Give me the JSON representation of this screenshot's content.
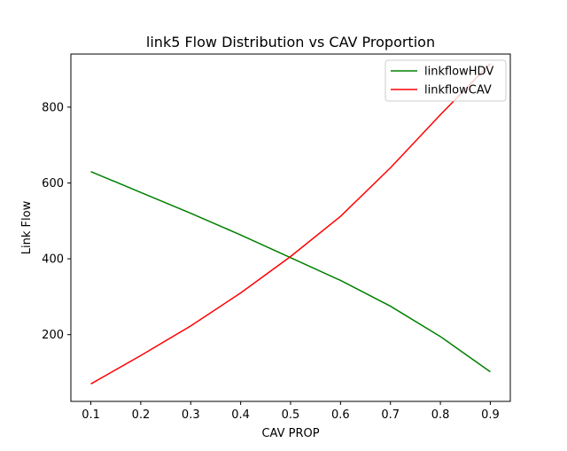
{
  "chart_data": {
    "type": "line",
    "title": "link5 Flow Distribution vs CAV Proportion",
    "xlabel": "CAV PROP",
    "ylabel": "Link Flow",
    "x": [
      0.1,
      0.2,
      0.3,
      0.4,
      0.5,
      0.6,
      0.7,
      0.8,
      0.9
    ],
    "xlim": [
      0.06,
      0.94
    ],
    "ylim": [
      24,
      940
    ],
    "xticks": [
      "0.1",
      "0.2",
      "0.3",
      "0.4",
      "0.5",
      "0.6",
      "0.7",
      "0.8",
      "0.9"
    ],
    "yticks": [
      "200",
      "400",
      "600",
      "800"
    ],
    "grid": false,
    "legend_position": "top-right",
    "series": [
      {
        "name": "linkflowHDV",
        "color": "#008000",
        "values": [
          630,
          575,
          520,
          463,
          403,
          343,
          275,
          195,
          102
        ]
      },
      {
        "name": "linkflowCAV",
        "color": "#ff0000",
        "values": [
          70,
          145,
          223,
          310,
          406,
          512,
          640,
          780,
          915
        ]
      }
    ]
  }
}
